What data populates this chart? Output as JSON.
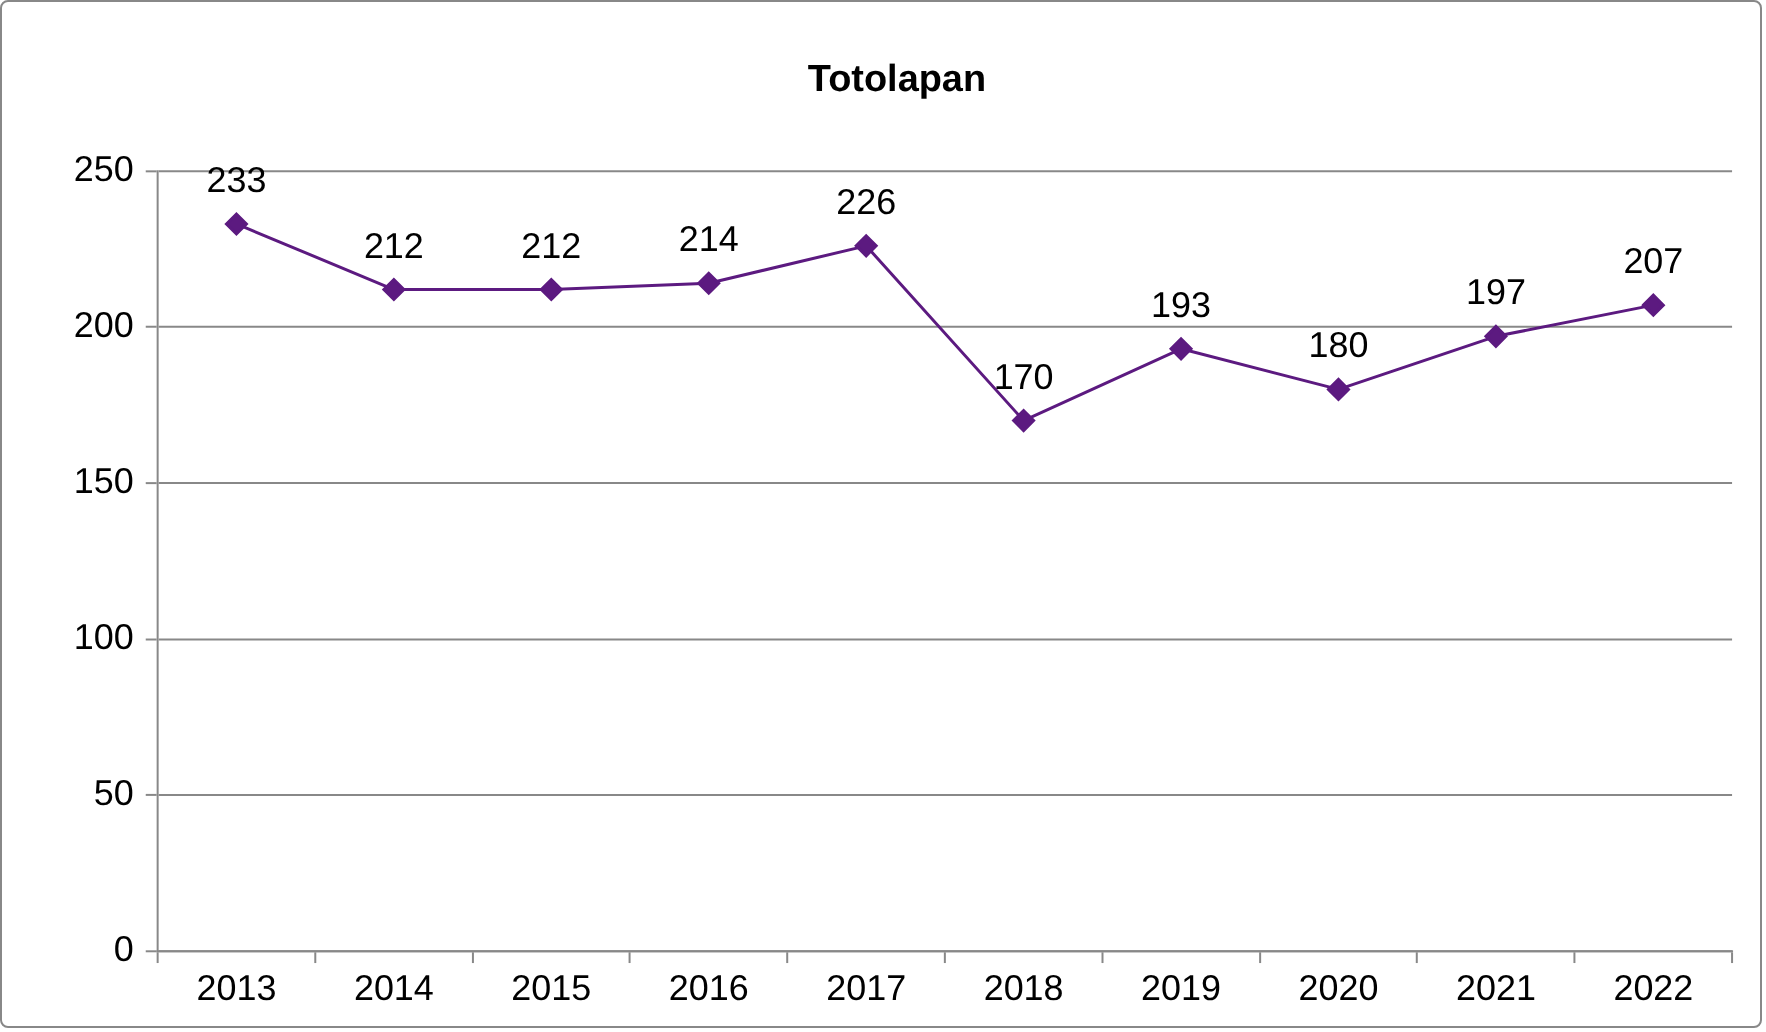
{
  "chart_data": {
    "type": "line",
    "title": "Totolapan",
    "categories": [
      "2013",
      "2014",
      "2015",
      "2016",
      "2017",
      "2018",
      "2019",
      "2020",
      "2021",
      "2022"
    ],
    "series": [
      {
        "color": "#5c1a80",
        "values": [
          233,
          212,
          212,
          214,
          226,
          170,
          193,
          180,
          197,
          207
        ]
      }
    ],
    "ylim": [
      0,
      250
    ],
    "yticks": [
      0,
      50,
      100,
      150,
      200,
      250
    ],
    "grid": "y",
    "legend": false,
    "marker": "diamond",
    "line_style": "solid",
    "data_labels": true
  }
}
